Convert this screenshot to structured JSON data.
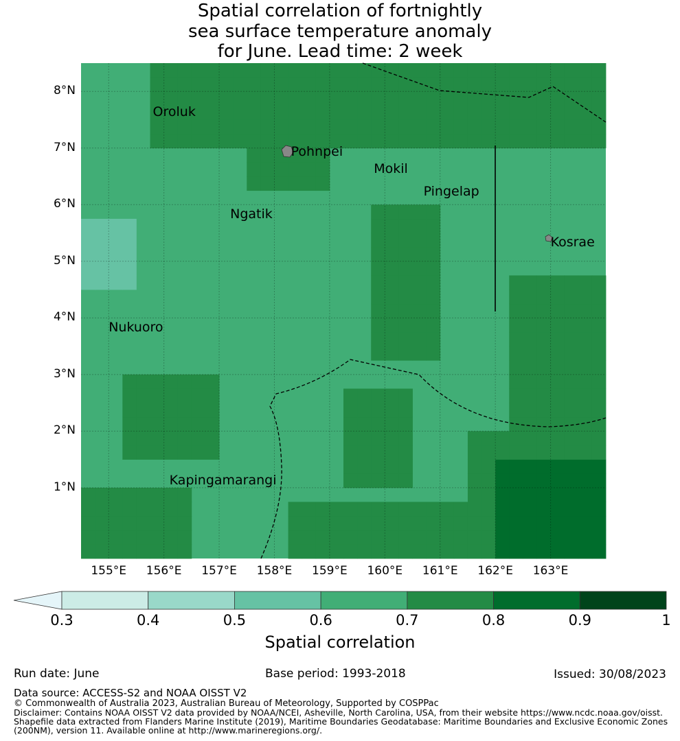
{
  "title_lines": [
    "Spatial correlation of fortnightly",
    "sea surface temperature anomaly",
    "for June. Lead time: 2 week"
  ],
  "map": {
    "lon_range": [
      154.5,
      164.0
    ],
    "lat_range": [
      -0.25,
      8.5
    ],
    "lat_ticks": [
      "8°N",
      "7°N",
      "6°N",
      "5°N",
      "4°N",
      "3°N",
      "2°N",
      "1°N"
    ],
    "lat_values": [
      8,
      7,
      6,
      5,
      4,
      3,
      2,
      1
    ],
    "lon_ticks": [
      "155°E",
      "156°E",
      "157°E",
      "158°E",
      "159°E",
      "160°E",
      "161°E",
      "162°E",
      "163°E"
    ],
    "lon_values": [
      155,
      156,
      157,
      158,
      159,
      160,
      161,
      162,
      163
    ],
    "places": [
      {
        "name": "Oroluk",
        "lon": 155.8,
        "lat": 7.6
      },
      {
        "name": "Pohnpei",
        "lon": 158.3,
        "lat": 6.9
      },
      {
        "name": "Mokil",
        "lon": 159.8,
        "lat": 6.6
      },
      {
        "name": "Pingelap",
        "lon": 160.7,
        "lat": 6.2
      },
      {
        "name": "Ngatik",
        "lon": 157.2,
        "lat": 5.8
      },
      {
        "name": "Kosrae",
        "lon": 163.0,
        "lat": 5.3
      },
      {
        "name": "Nukuoro",
        "lon": 155.0,
        "lat": 3.8
      },
      {
        "name": "Kapingamarangi",
        "lon": 156.1,
        "lat": 1.1
      }
    ]
  },
  "colorbar": {
    "title": "Spatial correlation",
    "ticks": [
      "0.3",
      "0.4",
      "0.5",
      "0.6",
      "0.7",
      "0.8",
      "0.9",
      "1"
    ],
    "bins": [
      {
        "from": 0.3,
        "to": 0.4,
        "color": "#ccece6"
      },
      {
        "from": 0.4,
        "to": 0.5,
        "color": "#99d8c9"
      },
      {
        "from": 0.5,
        "to": 0.6,
        "color": "#66c2a4"
      },
      {
        "from": 0.6,
        "to": 0.7,
        "color": "#41ae76"
      },
      {
        "from": 0.7,
        "to": 0.8,
        "color": "#238b45"
      },
      {
        "from": 0.8,
        "to": 0.9,
        "color": "#006d2c"
      },
      {
        "from": 0.9,
        "to": 1.0,
        "color": "#00441b"
      }
    ],
    "under_color": "#e5f5f9"
  },
  "footer": {
    "run_date": "Run date: June",
    "base_period": "Base period: 1993-2018",
    "issued": "Issued: 30/08/2023",
    "data_source": "Data source: ACCESS-S2 and NOAA OISST V2",
    "copyright": "© Commonwealth of Australia 2023, Australian Bureau of Meteorology, Supported by COSPPac",
    "disclaimer1": "Disclaimer: Contains NOAA OISST V2 data provided by NOAA/NCEI, Asheville, North Carolina, USA, from their website https://www.ncdc.noaa.gov/oisst.",
    "disclaimer2": "Shapefile data extracted from Flanders Marine Institute (2019), Maritime Boundaries Geodatabase: Maritime Boundaries and Exclusive Economic Zones",
    "disclaimer3": "(200NM), version 11. Available online at http://www.marineregions.org/."
  }
}
